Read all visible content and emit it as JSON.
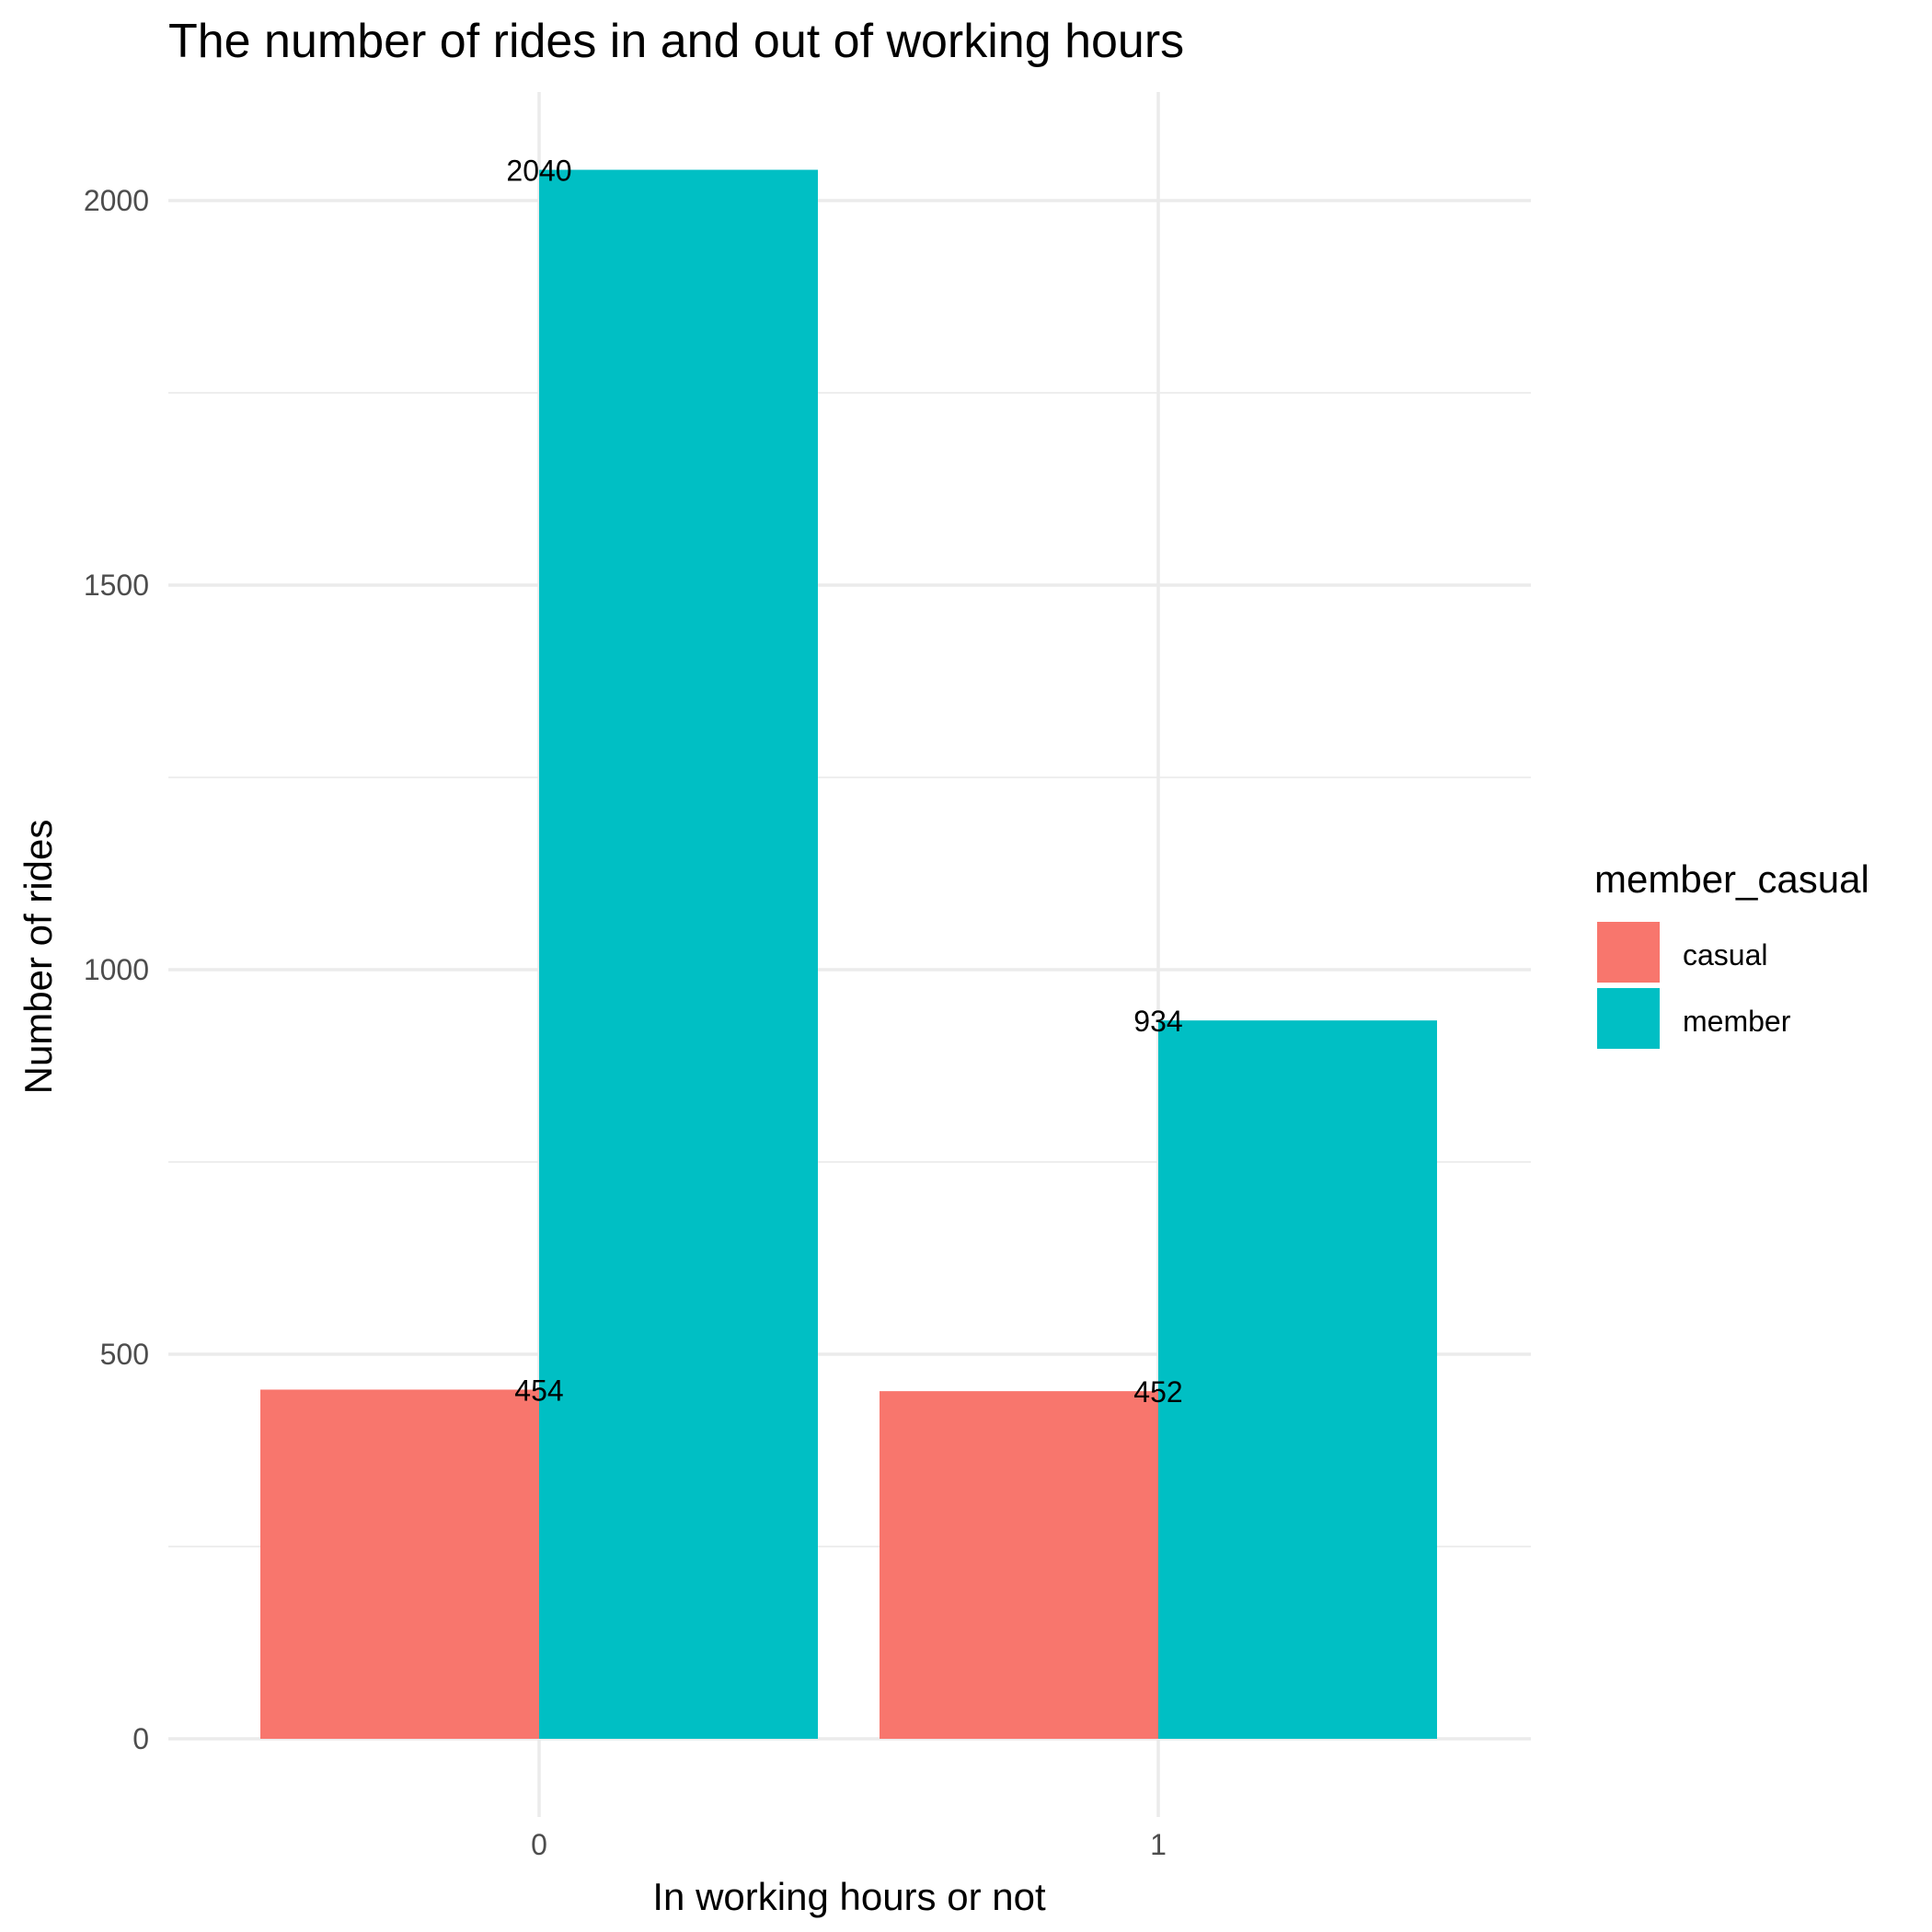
{
  "chart_data": {
    "type": "bar",
    "title": "The number of rides in and out of working hours",
    "xlabel": "In working hours or not",
    "ylabel": "Number of rides",
    "categories": [
      "0",
      "1"
    ],
    "series": [
      {
        "name": "casual",
        "values": [
          454,
          452
        ],
        "color": "#F8766D"
      },
      {
        "name": "member",
        "values": [
          2040,
          934
        ],
        "color": "#00BFC4"
      }
    ],
    "ylim": [
      0,
      2150
    ],
    "yticks": [
      0,
      500,
      1000,
      1500,
      2000
    ],
    "ytick_labels": [
      "0",
      "500",
      "1000",
      "1500",
      "2000"
    ],
    "grid": true,
    "legend": {
      "title": "member_casual",
      "position": "right"
    }
  }
}
